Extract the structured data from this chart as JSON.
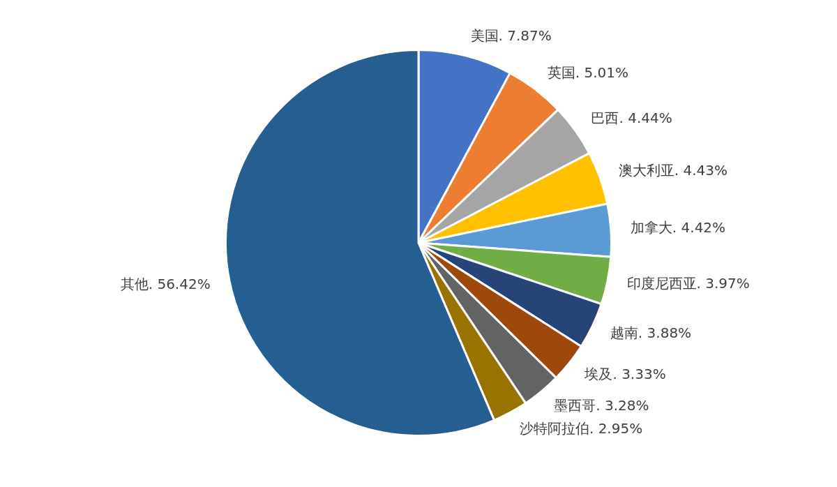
{
  "chart_data": {
    "type": "pie",
    "categories": [
      "美国.",
      "英国.",
      "巴西.",
      "澳大利亚.",
      "加拿大.",
      "印度尼西亚.",
      "越南.",
      "埃及.",
      "墨西哥.",
      "沙特阿拉伯.",
      "其他."
    ],
    "values": [
      7.87,
      5.01,
      4.44,
      4.43,
      4.42,
      3.97,
      3.88,
      3.33,
      3.28,
      2.95,
      56.42
    ],
    "value_labels": [
      "7.87%",
      "5.01%",
      "4.44%",
      "4.43%",
      "4.42%",
      "3.97%",
      "3.88%",
      "3.33%",
      "3.28%",
      "2.95%",
      "56.42%"
    ],
    "colors": [
      "#4472c4",
      "#ed7d31",
      "#a5a5a5",
      "#ffc000",
      "#5b9bd5",
      "#70ad47",
      "#264478",
      "#9e480e",
      "#636363",
      "#997300",
      "#255e91"
    ],
    "legend": false
  }
}
